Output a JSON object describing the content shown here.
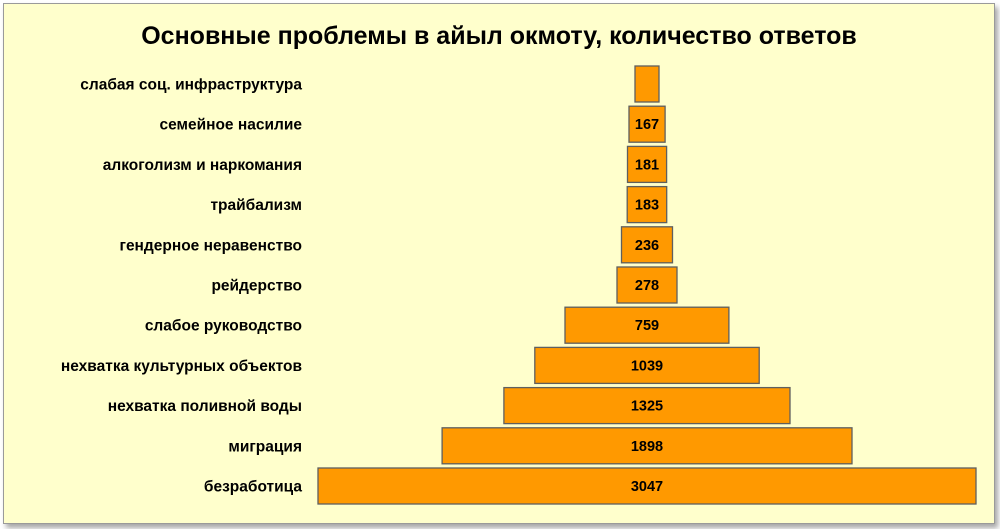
{
  "chart_data": {
    "type": "bar",
    "orientation": "horizontal-centered (funnel)",
    "title": "Основные проблемы в айыл окмоту, количество ответов",
    "categories": [
      "слабая соц. инфраструктура",
      "семейное насилие",
      "алкоголизм и наркомания",
      "трайбализм",
      "гендерное неравенство",
      "рейдерство",
      "слабое руководство",
      "нехватка культурных объектов",
      "нехватка поливной воды",
      "миграция",
      "безработица"
    ],
    "values": [
      110,
      167,
      181,
      183,
      236,
      278,
      759,
      1039,
      1325,
      1898,
      3047
    ],
    "data_labels": [
      "",
      "167",
      "181",
      "183",
      "236",
      "278",
      "759",
      "1039",
      "1325",
      "1898",
      "3047"
    ],
    "xlabel": "",
    "ylabel": "",
    "grid": false,
    "legend": "none",
    "colors": {
      "bar_fill": "#ff9900",
      "bar_stroke": "#5f5f5f",
      "background": "#ffffcc"
    }
  }
}
